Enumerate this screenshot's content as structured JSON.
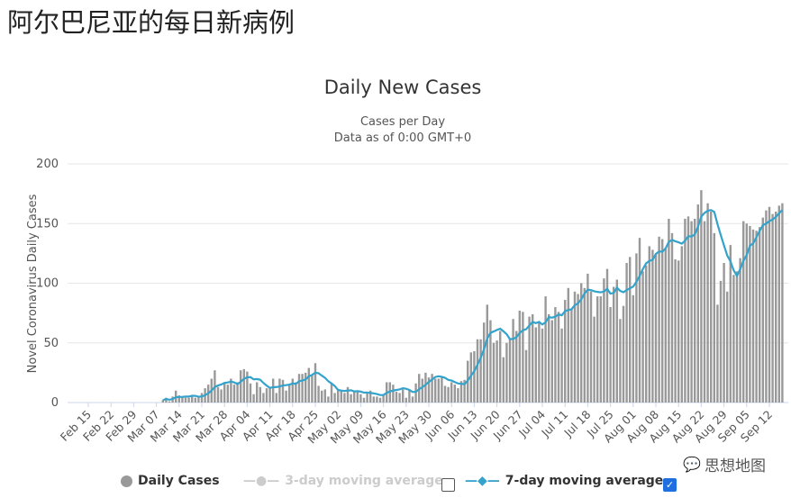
{
  "page_title": "阿尔巴尼亚的每日新病例",
  "watermark": {
    "text": "思想地图",
    "icon": "wechat-icon"
  },
  "legend": {
    "daily": "Daily Cases",
    "ma3": "3-day moving average",
    "ma3_checked": false,
    "ma7": "7-day moving average",
    "ma7_checked": true
  },
  "colors": {
    "bars": "#999999",
    "ma7": "#33a3cc",
    "disabled": "#cccccc"
  },
  "chart_data": {
    "type": "bar",
    "title": "Daily New Cases",
    "subtitle": "Cases per Day",
    "subtitle2": "Data as of 0:00 GMT+0",
    "ylabel": "Novel Coronavirus Daily Cases",
    "ylim": [
      0,
      200
    ],
    "yticks": [
      0,
      50,
      100,
      150,
      200
    ],
    "grid": true,
    "legend_position": "bottom",
    "xticks": [
      "Feb 15",
      "Feb 22",
      "Feb 29",
      "Mar 07",
      "Mar 14",
      "Mar 21",
      "Mar 28",
      "Apr 04",
      "Apr 11",
      "Apr 18",
      "Apr 25",
      "May 02",
      "May 09",
      "May 16",
      "May 23",
      "May 30",
      "Jun 06",
      "Jun 13",
      "Jun 20",
      "Jun 27",
      "Jul 04",
      "Jul 11",
      "Jul 18",
      "Jul 25",
      "Aug 01",
      "Aug 08",
      "Aug 15",
      "Aug 22",
      "Aug 29",
      "Sep 05",
      "Sep 12"
    ],
    "x_range": [
      "Feb 15",
      "Sep 16"
    ],
    "series": [
      {
        "name": "Daily Cases",
        "values": [
          0,
          0,
          0,
          0,
          0,
          0,
          0,
          0,
          0,
          0,
          0,
          0,
          0,
          0,
          0,
          0,
          0,
          0,
          0,
          0,
          0,
          0,
          0,
          2,
          4,
          1,
          5,
          10,
          6,
          5,
          4,
          4,
          6,
          4,
          5,
          8,
          12,
          15,
          20,
          27,
          13,
          11,
          17,
          15,
          20,
          15,
          17,
          27,
          28,
          26,
          16,
          7,
          17,
          13,
          8,
          12,
          13,
          20,
          8,
          20,
          19,
          10,
          15,
          20,
          17,
          24,
          24,
          25,
          29,
          23,
          33,
          14,
          10,
          11,
          5,
          16,
          8,
          10,
          10,
          8,
          13,
          7,
          9,
          10,
          7,
          4,
          9,
          10,
          5,
          5,
          4,
          7,
          17,
          17,
          15,
          9,
          8,
          11,
          4,
          10,
          5,
          16,
          24,
          20,
          25,
          21,
          24,
          20,
          20,
          21,
          14,
          13,
          17,
          15,
          12,
          18,
          19,
          35,
          42,
          43,
          53,
          53,
          67,
          82,
          69,
          50,
          52,
          60,
          38,
          50,
          53,
          70,
          60,
          77,
          76,
          44,
          72,
          74,
          63,
          67,
          62,
          89,
          74,
          69,
          80,
          76,
          62,
          86,
          96,
          78,
          93,
          91,
          100,
          96,
          108,
          93,
          72,
          89,
          89,
          104,
          112,
          80,
          97,
          103,
          70,
          81,
          117,
          122,
          90,
          125,
          138,
          110,
          115,
          131,
          128,
          125,
          139,
          137,
          129,
          154,
          142,
          120,
          119,
          131,
          154,
          156,
          152,
          154,
          166,
          178,
          152,
          167,
          160,
          142,
          82,
          102,
          117,
          93,
          132,
          107,
          110,
          121,
          152,
          150,
          148,
          145,
          144,
          147,
          155,
          161,
          164,
          158,
          160,
          165,
          167
        ]
      },
      {
        "name": "7-day moving average",
        "derived_from": "Daily Cases",
        "window": 7
      }
    ]
  }
}
